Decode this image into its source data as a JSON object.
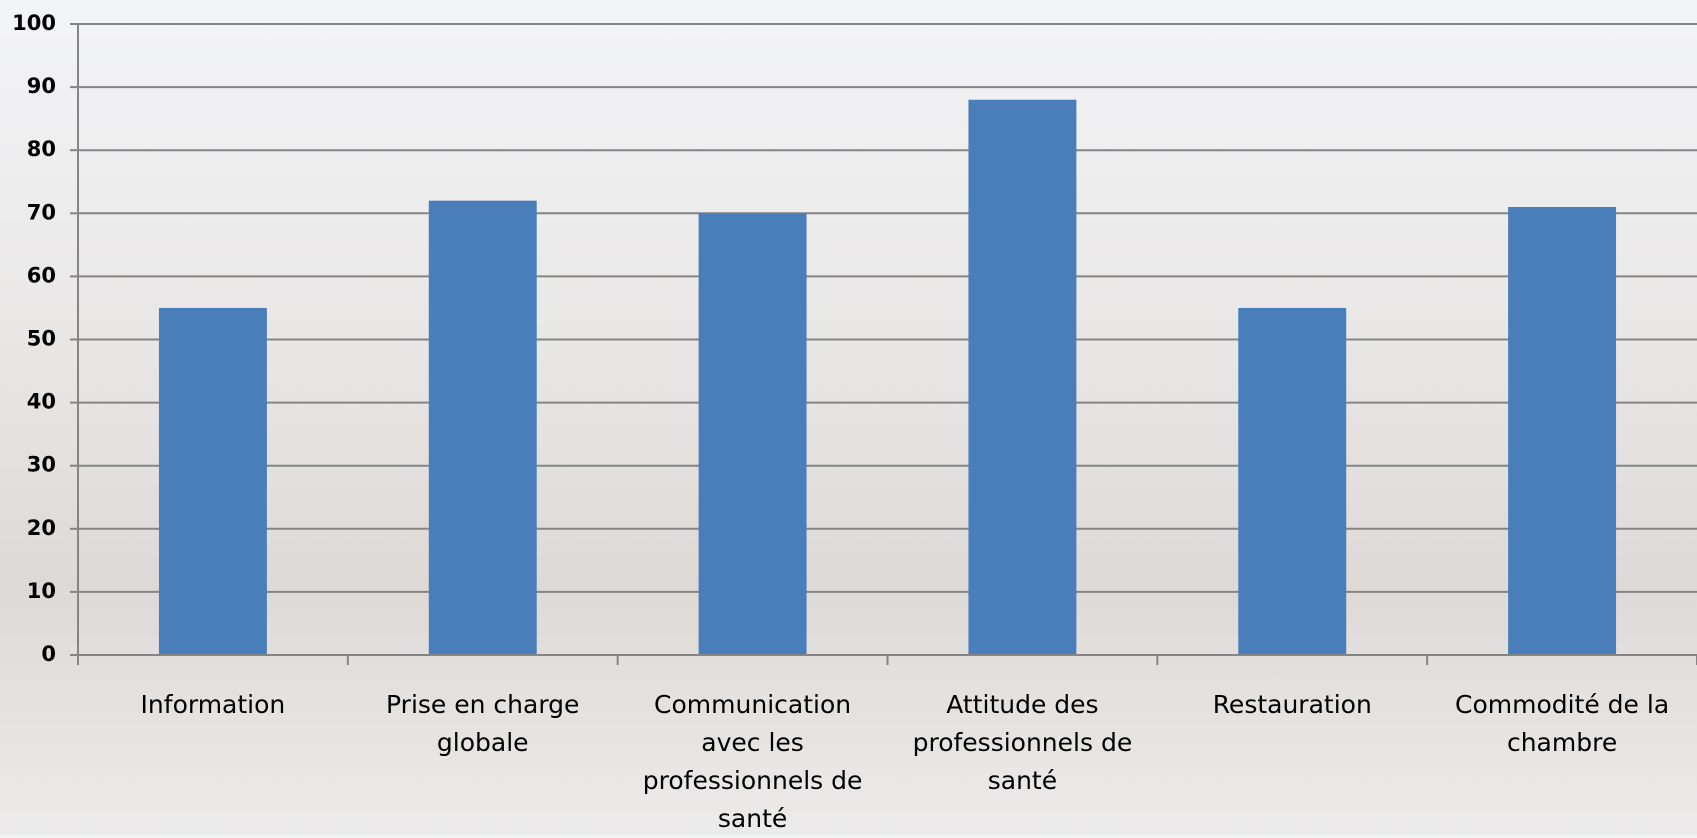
{
  "chart_data": {
    "type": "bar",
    "categories": [
      "Information",
      "Prise en charge globale",
      "Communication avec les professionnels de santé",
      "Attitude des professionnels de santé",
      "Restauration",
      "Commodité de la chambre"
    ],
    "values": [
      55,
      72,
      70,
      88,
      55,
      71
    ],
    "color": "#4a7ebb",
    "ylim": [
      0,
      100
    ],
    "yticks": [
      0,
      10,
      20,
      30,
      40,
      50,
      60,
      70,
      80,
      90,
      100
    ],
    "grid": true
  }
}
